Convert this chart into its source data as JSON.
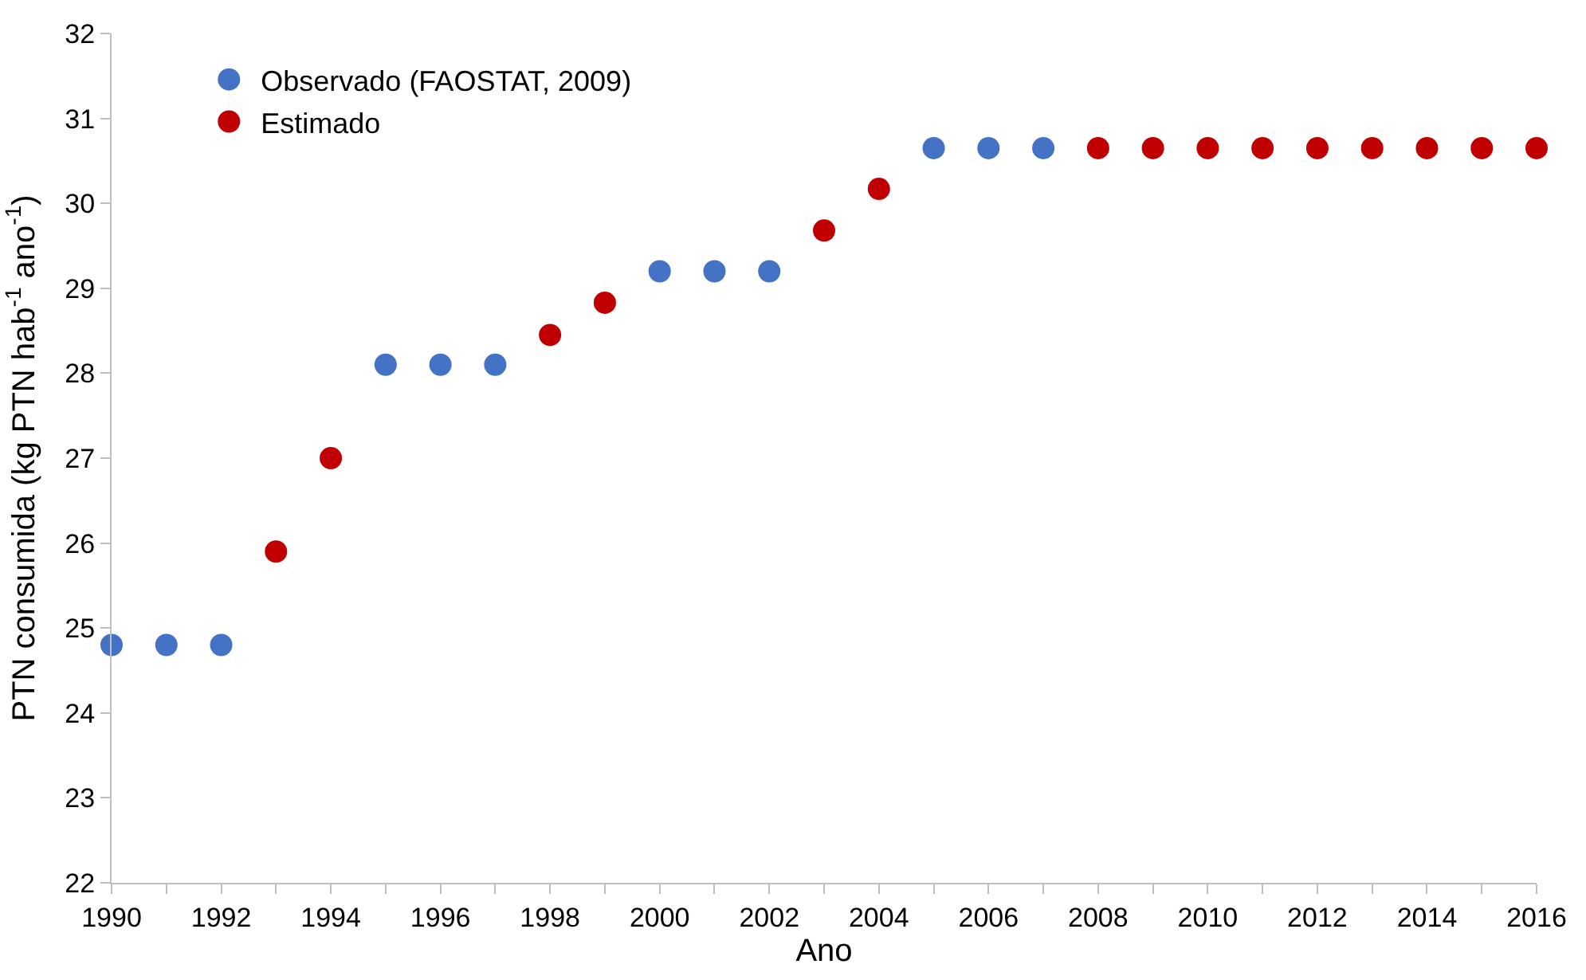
{
  "chart_data": {
    "type": "scatter",
    "xlabel": "Ano",
    "ylabel": "PTN consumida (kg PTN hab$^{-1}$ ano$^{-1}$)",
    "xlim": [
      1990,
      2016
    ],
    "xticks": [
      1990,
      {
        "value": 1991,
        "label": null
      },
      1992,
      {
        "value": 1993,
        "label": null
      },
      1994,
      {
        "value": 1995,
        "label": null
      },
      1996,
      {
        "value": 1997,
        "label": null
      },
      1998,
      {
        "value": 1999,
        "label": null
      },
      2000,
      {
        "value": 2001,
        "label": null
      },
      2002,
      {
        "value": 2003,
        "label": null
      },
      2004,
      {
        "value": 2005,
        "label": null
      },
      2006,
      {
        "value": 2007,
        "label": null
      },
      2008,
      {
        "value": 2009,
        "label": null
      },
      2010,
      {
        "value": 2011,
        "label": null
      },
      2012,
      {
        "value": 2013,
        "label": null
      },
      2014,
      {
        "value": 2015,
        "label": null
      },
      2016
    ],
    "ylim": [
      22,
      32
    ],
    "yticks": [
      22,
      23,
      24,
      25,
      26,
      27,
      28,
      29,
      30,
      31,
      32
    ],
    "legend": "top left",
    "marker": "circle",
    "series": [
      {
        "name": "Observado (FAOSTAT, 2009)",
        "color": "#4472c4",
        "x": [
          1990,
          1991,
          1992,
          1995,
          1996,
          1997,
          2000,
          2001,
          2002,
          2005,
          2006,
          2007
        ],
        "values": [
          24.8,
          24.8,
          24.8,
          28.1,
          28.1,
          28.1,
          29.2,
          29.2,
          29.2,
          30.65,
          30.65,
          30.65
        ]
      },
      {
        "name": "Estimado",
        "color": "#c00000",
        "x": [
          1993,
          1994,
          1998,
          1999,
          2003,
          2004,
          2008,
          2009,
          2010,
          2011,
          2012,
          2013,
          2014,
          2015,
          2016
        ],
        "values": [
          25.9,
          27.0,
          28.45,
          28.83,
          29.68,
          30.17,
          30.65,
          30.65,
          30.65,
          30.65,
          30.65,
          30.65,
          30.65,
          30.65,
          30.65
        ]
      }
    ]
  }
}
